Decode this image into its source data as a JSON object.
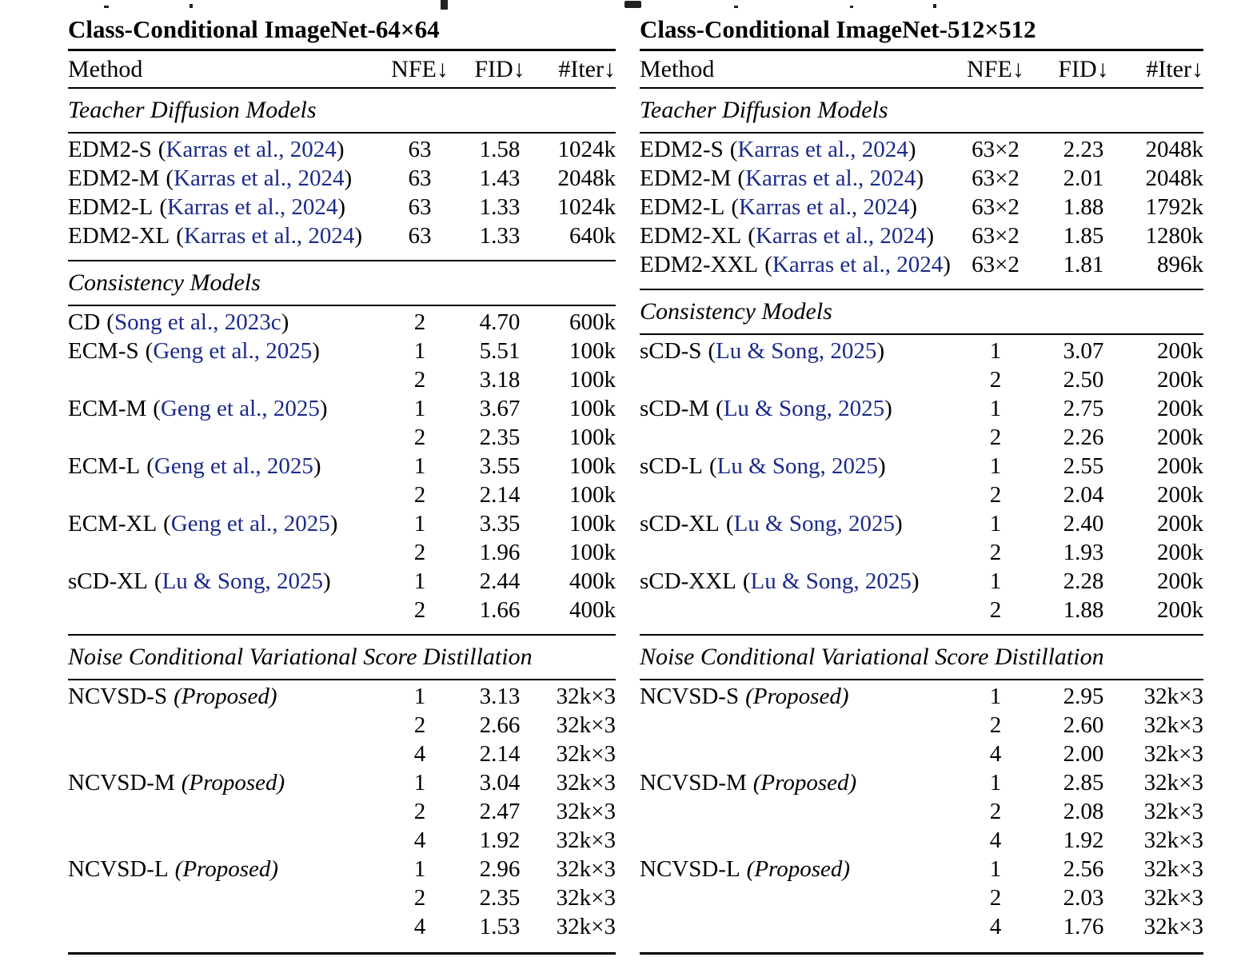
{
  "colors": {
    "citation": "#1b2a8a",
    "text": "#000000",
    "background": "#ffffff"
  },
  "punct": {
    "open": "(",
    "close": ")"
  },
  "tables": [
    {
      "title": "Class-Conditional ImageNet-64×64",
      "columns": [
        "Method",
        "NFE↓",
        "FID↓",
        "#Iter↓"
      ],
      "sections": [
        {
          "heading": "Teacher Diffusion Models",
          "rows": [
            {
              "m": "EDM2-S",
              "cite": "Karras et al., 2024",
              "nfe": "63",
              "fid": "1.58",
              "it": "1024k"
            },
            {
              "m": "EDM2-M",
              "cite": "Karras et al., 2024",
              "nfe": "63",
              "fid": "1.43",
              "it": "2048k"
            },
            {
              "m": "EDM2-L",
              "cite": "Karras et al., 2024",
              "nfe": "63",
              "fid": "1.33",
              "it": "1024k"
            },
            {
              "m": "EDM2-XL",
              "cite": "Karras et al., 2024",
              "nfe": "63",
              "fid": "1.33",
              "it": "640k"
            }
          ]
        },
        {
          "heading": "Consistency Models",
          "rows": [
            {
              "m": "CD",
              "cite": "Song et al., 2023c",
              "nfe": "2",
              "fid": "4.70",
              "it": "600k"
            },
            {
              "m": "ECM-S",
              "cite": "Geng et al., 2025",
              "nfe": "1",
              "fid": "5.51",
              "it": "100k"
            },
            {
              "m": "",
              "nfe": "2",
              "fid": "3.18",
              "it": "100k"
            },
            {
              "m": "ECM-M",
              "cite": "Geng et al., 2025",
              "nfe": "1",
              "fid": "3.67",
              "it": "100k"
            },
            {
              "m": "",
              "nfe": "2",
              "fid": "2.35",
              "it": "100k"
            },
            {
              "m": "ECM-L",
              "cite": "Geng et al., 2025",
              "nfe": "1",
              "fid": "3.55",
              "it": "100k"
            },
            {
              "m": "",
              "nfe": "2",
              "fid": "2.14",
              "it": "100k"
            },
            {
              "m": "ECM-XL",
              "cite": "Geng et al., 2025",
              "nfe": "1",
              "fid": "3.35",
              "it": "100k"
            },
            {
              "m": "",
              "nfe": "2",
              "fid": "1.96",
              "it": "100k"
            },
            {
              "m": "sCD-XL",
              "cite": "Lu & Song, 2025",
              "nfe": "1",
              "fid": "2.44",
              "it": "400k"
            },
            {
              "m": "",
              "nfe": "2",
              "fid": "1.66",
              "it": "400k"
            }
          ]
        },
        {
          "heading": "Noise Conditional Variational Score Distillation",
          "rows": [
            {
              "m": "NCVSD-S",
              "prop": "(Proposed)",
              "nfe": "1",
              "fid": "3.13",
              "it": "32k×3"
            },
            {
              "m": "",
              "nfe": "2",
              "fid": "2.66",
              "it": "32k×3"
            },
            {
              "m": "",
              "nfe": "4",
              "fid": "2.14",
              "it": "32k×3"
            },
            {
              "m": "NCVSD-M",
              "prop": "(Proposed)",
              "nfe": "1",
              "fid": "3.04",
              "it": "32k×3"
            },
            {
              "m": "",
              "nfe": "2",
              "fid": "2.47",
              "it": "32k×3"
            },
            {
              "m": "",
              "nfe": "4",
              "fid": "1.92",
              "it": "32k×3"
            },
            {
              "m": "NCVSD-L",
              "prop": "(Proposed)",
              "nfe": "1",
              "fid": "2.96",
              "it": "32k×3"
            },
            {
              "m": "",
              "nfe": "2",
              "fid": "2.35",
              "it": "32k×3"
            },
            {
              "m": "",
              "nfe": "4",
              "fid": "1.53",
              "it": "32k×3"
            }
          ]
        }
      ]
    },
    {
      "title": "Class-Conditional ImageNet-512×512",
      "columns": [
        "Method",
        "NFE↓",
        "FID↓",
        "#Iter↓"
      ],
      "sections": [
        {
          "heading": "Teacher Diffusion Models",
          "rows": [
            {
              "m": "EDM2-S",
              "cite": "Karras et al., 2024",
              "nfe": "63×2",
              "fid": "2.23",
              "it": "2048k"
            },
            {
              "m": "EDM2-M",
              "cite": "Karras et al., 2024",
              "nfe": "63×2",
              "fid": "2.01",
              "it": "2048k"
            },
            {
              "m": "EDM2-L",
              "cite": "Karras et al., 2024",
              "nfe": "63×2",
              "fid": "1.88",
              "it": "1792k"
            },
            {
              "m": "EDM2-XL",
              "cite": "Karras et al., 2024",
              "nfe": "63×2",
              "fid": "1.85",
              "it": "1280k"
            },
            {
              "m": "EDM2-XXL",
              "cite": "Karras et al., 2024",
              "nfe": "63×2",
              "fid": "1.81",
              "it": "896k"
            }
          ]
        },
        {
          "heading": "Consistency Models",
          "rows": [
            {
              "m": "sCD-S",
              "cite": "Lu & Song, 2025",
              "nfe": "1",
              "fid": "3.07",
              "it": "200k"
            },
            {
              "m": "",
              "nfe": "2",
              "fid": "2.50",
              "it": "200k"
            },
            {
              "m": "sCD-M",
              "cite": "Lu & Song, 2025",
              "nfe": "1",
              "fid": "2.75",
              "it": "200k"
            },
            {
              "m": "",
              "nfe": "2",
              "fid": "2.26",
              "it": "200k"
            },
            {
              "m": "sCD-L",
              "cite": "Lu & Song, 2025",
              "nfe": "1",
              "fid": "2.55",
              "it": "200k"
            },
            {
              "m": "",
              "nfe": "2",
              "fid": "2.04",
              "it": "200k"
            },
            {
              "m": "sCD-XL",
              "cite": "Lu & Song, 2025",
              "nfe": "1",
              "fid": "2.40",
              "it": "200k"
            },
            {
              "m": "",
              "nfe": "2",
              "fid": "1.93",
              "it": "200k"
            },
            {
              "m": "sCD-XXL",
              "cite": "Lu & Song, 2025",
              "nfe": "1",
              "fid": "2.28",
              "it": "200k"
            },
            {
              "m": "",
              "nfe": "2",
              "fid": "1.88",
              "it": "200k"
            }
          ]
        },
        {
          "heading": "Noise Conditional Variational Score Distillation",
          "rows": [
            {
              "m": "NCVSD-S",
              "prop": "(Proposed)",
              "nfe": "1",
              "fid": "2.95",
              "it": "32k×3"
            },
            {
              "m": "",
              "nfe": "2",
              "fid": "2.60",
              "it": "32k×3"
            },
            {
              "m": "",
              "nfe": "4",
              "fid": "2.00",
              "it": "32k×3"
            },
            {
              "m": "NCVSD-M",
              "prop": "(Proposed)",
              "nfe": "1",
              "fid": "2.85",
              "it": "32k×3"
            },
            {
              "m": "",
              "nfe": "2",
              "fid": "2.08",
              "it": "32k×3"
            },
            {
              "m": "",
              "nfe": "4",
              "fid": "1.92",
              "it": "32k×3"
            },
            {
              "m": "NCVSD-L",
              "prop": "(Proposed)",
              "nfe": "1",
              "fid": "2.56",
              "it": "32k×3"
            },
            {
              "m": "",
              "nfe": "2",
              "fid": "2.03",
              "it": "32k×3"
            },
            {
              "m": "",
              "nfe": "4",
              "fid": "1.76",
              "it": "32k×3"
            }
          ]
        }
      ]
    }
  ]
}
